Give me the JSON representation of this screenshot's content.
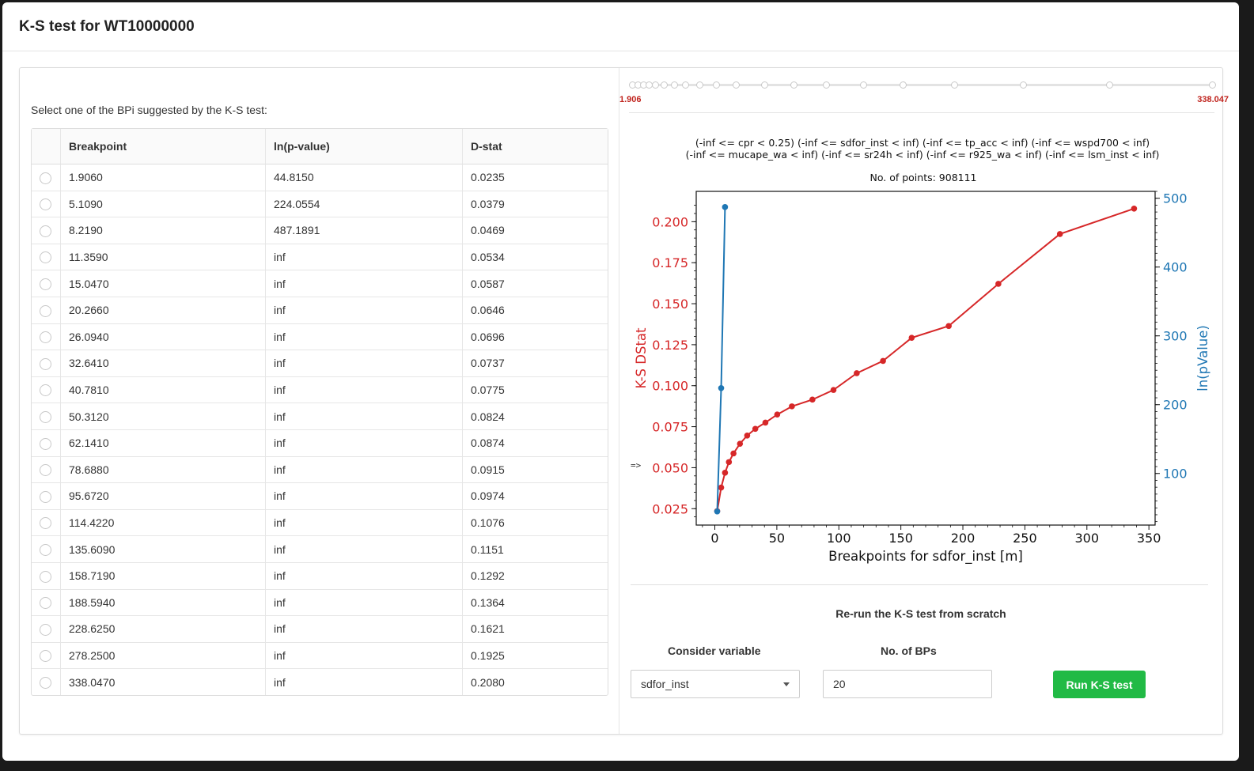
{
  "header": {
    "title": "K-S test for WT10000000"
  },
  "left": {
    "prompt": "Select one of the BPi suggested by the K-S test:",
    "columns": [
      "Breakpoint",
      "ln(p-value)",
      "D-stat"
    ],
    "rows": [
      [
        "1.9060",
        "44.8150",
        "0.0235"
      ],
      [
        "5.1090",
        "224.0554",
        "0.0379"
      ],
      [
        "8.2190",
        "487.1891",
        "0.0469"
      ],
      [
        "11.3590",
        "inf",
        "0.0534"
      ],
      [
        "15.0470",
        "inf",
        "0.0587"
      ],
      [
        "20.2660",
        "inf",
        "0.0646"
      ],
      [
        "26.0940",
        "inf",
        "0.0696"
      ],
      [
        "32.6410",
        "inf",
        "0.0737"
      ],
      [
        "40.7810",
        "inf",
        "0.0775"
      ],
      [
        "50.3120",
        "inf",
        "0.0824"
      ],
      [
        "62.1410",
        "inf",
        "0.0874"
      ],
      [
        "78.6880",
        "inf",
        "0.0915"
      ],
      [
        "95.6720",
        "inf",
        "0.0974"
      ],
      [
        "114.4220",
        "inf",
        "0.1076"
      ],
      [
        "135.6090",
        "inf",
        "0.1151"
      ],
      [
        "158.7190",
        "inf",
        "0.1292"
      ],
      [
        "188.5940",
        "inf",
        "0.1364"
      ],
      [
        "228.6250",
        "inf",
        "0.1621"
      ],
      [
        "278.2500",
        "inf",
        "0.1925"
      ],
      [
        "338.0470",
        "inf",
        "0.2080"
      ]
    ]
  },
  "arrow": "=>",
  "slider": {
    "min_label": "1.906",
    "max_label": "338.047"
  },
  "chart_data": {
    "type": "line",
    "title_line1": "(-inf <= cpr < 0.25) (-inf <= sdfor_inst < inf) (-inf <= tp_acc < inf) (-inf <= wspd700 < inf)",
    "title_line2": "(-inf <= mucape_wa < inf) (-inf <= sr24h < inf) (-inf <= r925_wa < inf) (-inf <= lsm_inst < inf)",
    "subtitle": "No. of points: 908111",
    "xlabel": "Breakpoints for sdfor_inst [m]",
    "ylabel_left": "K-S DStat",
    "ylabel_right": "ln(pValue)",
    "xlim": [
      -15,
      355
    ],
    "ylim_left": [
      0.015,
      0.2185
    ],
    "ylim_right": [
      25,
      510
    ],
    "x_ticks": [
      0,
      50,
      100,
      150,
      200,
      250,
      300,
      350
    ],
    "y_left_ticks": [
      0.025,
      0.05,
      0.075,
      0.1,
      0.125,
      0.15,
      0.175,
      0.2
    ],
    "y_right_ticks": [
      100,
      200,
      300,
      400,
      500
    ],
    "colors": {
      "left": "#d62728",
      "right": "#1f77b4"
    },
    "series": [
      {
        "axis": "left",
        "x": [
          1.906,
          5.109,
          8.219,
          11.359,
          15.047,
          20.266,
          26.094,
          32.641,
          40.781,
          50.312,
          62.141,
          78.688,
          95.672,
          114.422,
          135.609,
          158.719,
          188.594,
          228.625,
          278.25,
          338.047
        ],
        "values": [
          0.0235,
          0.0379,
          0.0469,
          0.0534,
          0.0587,
          0.0646,
          0.0696,
          0.0737,
          0.0775,
          0.0824,
          0.0874,
          0.0915,
          0.0974,
          0.1076,
          0.1151,
          0.1292,
          0.1364,
          0.1621,
          0.1925,
          0.208
        ]
      },
      {
        "axis": "right",
        "x": [
          1.906,
          5.109,
          8.219
        ],
        "values": [
          44.815,
          224.0554,
          487.1891
        ]
      }
    ]
  },
  "rerun": {
    "title": "Re-run the K-S test from scratch",
    "var_label": "Consider variable",
    "var_value": "sdfor_inst",
    "nbp_label": "No. of BPs",
    "nbp_value": "20",
    "button": "Run K-S test"
  }
}
